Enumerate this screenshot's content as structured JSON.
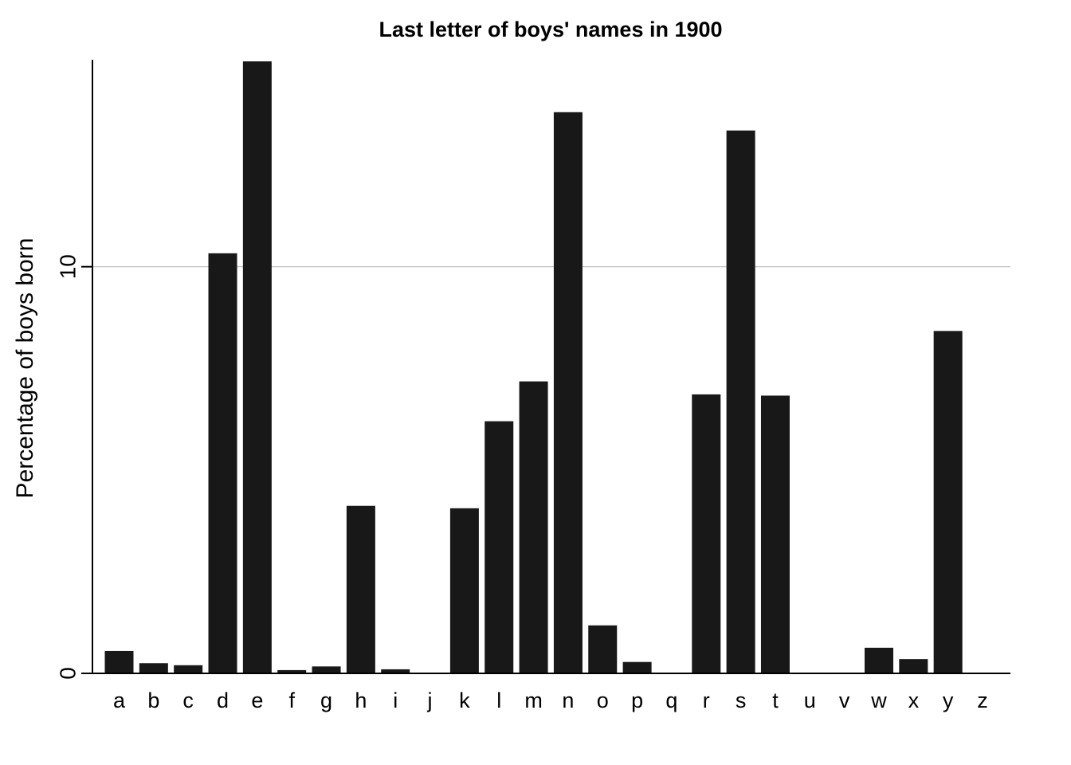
{
  "chart_data": {
    "type": "bar",
    "title": "Last letter of boys' names in 1900",
    "xlabel": "",
    "ylabel": "Percentage of boys born",
    "categories": [
      "a",
      "b",
      "c",
      "d",
      "e",
      "f",
      "g",
      "h",
      "i",
      "j",
      "k",
      "l",
      "m",
      "n",
      "o",
      "p",
      "q",
      "r",
      "s",
      "t",
      "u",
      "v",
      "w",
      "x",
      "y",
      "z"
    ],
    "values": [
      0.55,
      0.25,
      0.2,
      10.33,
      15.05,
      0.08,
      0.17,
      4.12,
      0.1,
      0.01,
      4.06,
      6.2,
      7.18,
      13.8,
      1.18,
      0.28,
      0.01,
      6.86,
      13.35,
      6.83,
      0.02,
      0.02,
      0.63,
      0.35,
      8.42,
      0.02
    ],
    "y_ticks": [
      0,
      10
    ],
    "ylim": [
      0,
      15.05
    ],
    "grid": "horizontal at 10",
    "bar_color": "#181818"
  }
}
